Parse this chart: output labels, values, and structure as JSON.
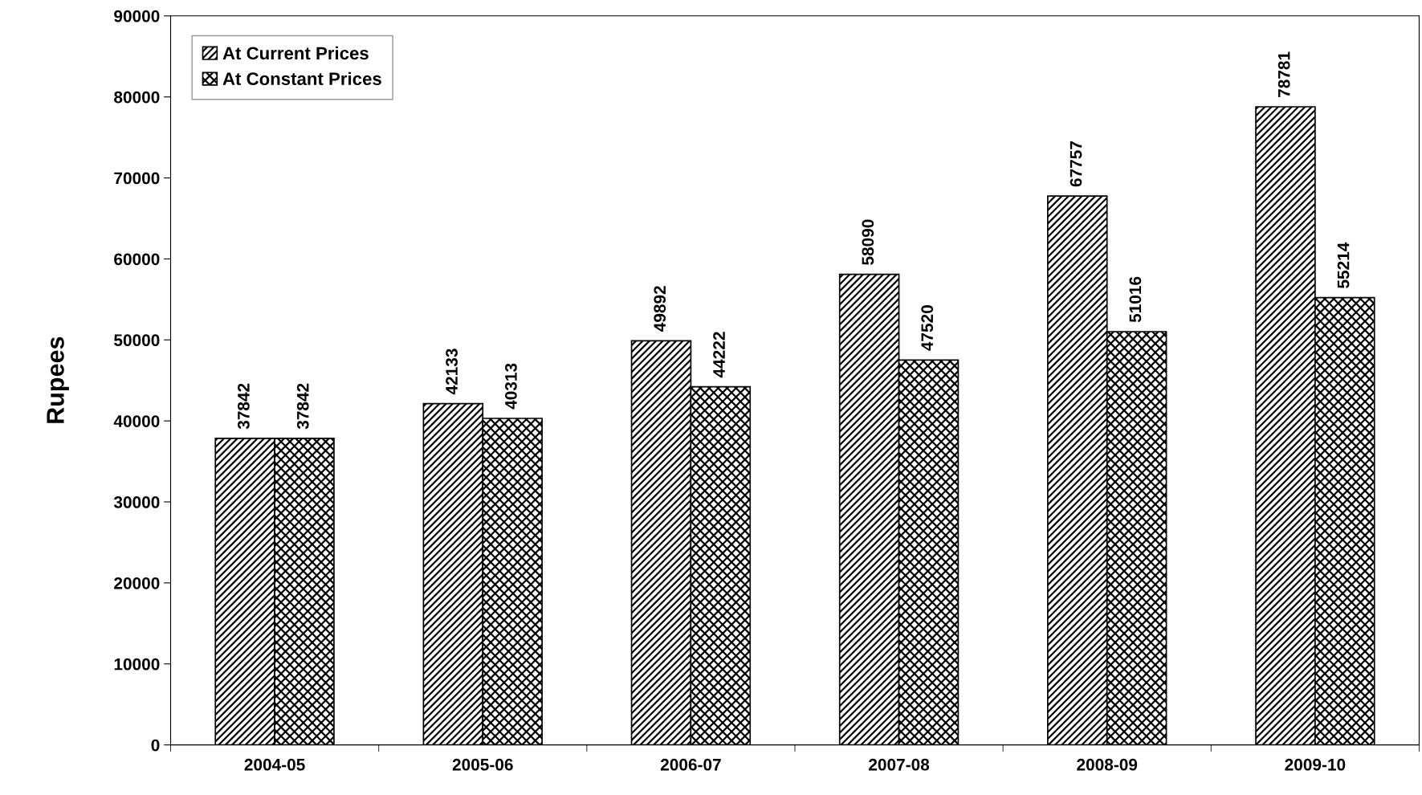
{
  "chart_data": {
    "type": "bar",
    "ylabel": "Rupees",
    "categories": [
      "2004-05",
      "2005-06",
      "2006-07",
      "2007-08",
      "2008-09",
      "2009-10"
    ],
    "series": [
      {
        "name": "At Current Prices",
        "color": "#000000",
        "values": [
          37842,
          42133,
          49892,
          58090,
          67757,
          78781
        ]
      },
      {
        "name": "At Constant Prices",
        "color": "#000000",
        "values": [
          37842,
          40313,
          44222,
          47520,
          51016,
          55214
        ]
      }
    ],
    "ylim": [
      0,
      90000
    ],
    "yticks": [
      0,
      10000,
      20000,
      30000,
      40000,
      50000,
      60000,
      70000,
      80000,
      90000
    ],
    "data_labels": true,
    "grid": false,
    "legend": "top left"
  }
}
